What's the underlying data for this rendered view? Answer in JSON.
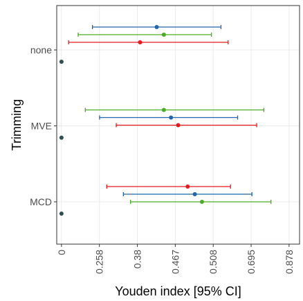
{
  "chart_data": {
    "type": "scatter",
    "title": "",
    "xlabel": "Youden index [95% CI]",
    "ylabel": "Trimming",
    "x_tick_labels": [
      "0",
      "0.258",
      "0.38",
      "0.467",
      "0.508",
      "0.695",
      "0.878"
    ],
    "xlim": [
      -0.02,
      1.0
    ],
    "grid": true,
    "legend": "none",
    "categories": [
      "none",
      "MVE",
      "MCD"
    ],
    "reference_points": [
      {
        "category": "none",
        "x": 0
      },
      {
        "category": "MVE",
        "x": 0
      },
      {
        "category": "MCD",
        "x": 0
      }
    ],
    "series": [
      {
        "color": "#2166ac",
        "points": [
          {
            "category": "none",
            "estimate": 0.4,
            "lower": 0.13,
            "upper": 0.67
          },
          {
            "category": "MVE",
            "estimate": 0.46,
            "lower": 0.16,
            "upper": 0.74
          },
          {
            "category": "MCD",
            "estimate": 0.56,
            "lower": 0.26,
            "upper": 0.8
          }
        ]
      },
      {
        "color": "#4dac26",
        "points": [
          {
            "category": "none",
            "estimate": 0.43,
            "lower": 0.07,
            "upper": 0.63
          },
          {
            "category": "MVE",
            "estimate": 0.43,
            "lower": 0.1,
            "upper": 0.85
          },
          {
            "category": "MCD",
            "estimate": 0.59,
            "lower": 0.29,
            "upper": 0.88
          }
        ]
      },
      {
        "color": "#e41a1c",
        "points": [
          {
            "category": "none",
            "estimate": 0.33,
            "lower": 0.03,
            "upper": 0.7
          },
          {
            "category": "MVE",
            "estimate": 0.49,
            "lower": 0.23,
            "upper": 0.82
          },
          {
            "category": "MCD",
            "estimate": 0.53,
            "lower": 0.19,
            "upper": 0.71
          }
        ]
      }
    ],
    "reference_color": "#2f4f4f"
  }
}
